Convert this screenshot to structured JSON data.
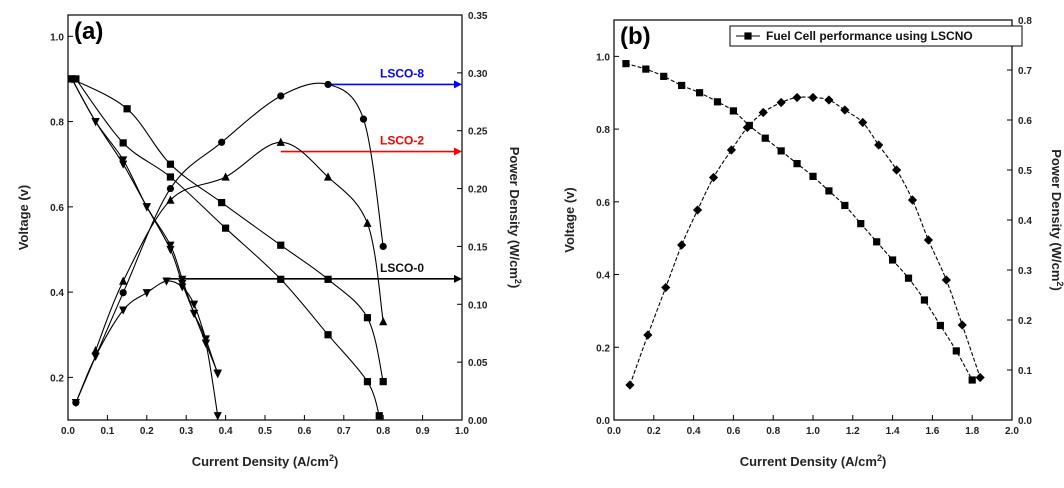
{
  "chart_data": [
    {
      "type": "line",
      "panel_label": "(a)",
      "xlabel": "Current Density (A/cm",
      "xlabel_sup": "2",
      "xlabel_suffix": ")",
      "ylabel": "Voltage (v)",
      "y2label": "Power Density (W/cm",
      "y2label_sup": "2",
      "y2label_suffix": ")",
      "xlim": [
        0,
        1.0
      ],
      "ylim": [
        0.1,
        1.05
      ],
      "y2lim": [
        0,
        0.35
      ],
      "xticks": [
        0.0,
        0.1,
        0.2,
        0.3,
        0.4,
        0.5,
        0.6,
        0.7,
        0.8,
        0.9,
        1.0
      ],
      "xtick_labels": [
        "0.0",
        "0.1",
        "0.2",
        "0.3",
        "0.4",
        "0.5",
        "0.6",
        "0.7",
        "0.8",
        "0.9",
        "1.0"
      ],
      "yticks": [
        0.2,
        0.4,
        0.6,
        0.8,
        1.0
      ],
      "ytick_labels": [
        "0.2",
        "0.4",
        "0.6",
        "0.8",
        "1.0"
      ],
      "y2ticks": [
        0.0,
        0.05,
        0.1,
        0.15,
        0.2,
        0.25,
        0.3,
        0.35
      ],
      "y2tick_labels": [
        "0.00",
        "0.05",
        "0.10",
        "0.15",
        "0.20",
        "0.25",
        "0.30",
        "0.35"
      ],
      "series": [
        {
          "marker": "triangle-down",
          "axis": "left",
          "x": [
            0.01,
            0.07,
            0.14,
            0.2,
            0.26,
            0.29,
            0.32,
            0.35,
            0.38
          ],
          "y": [
            0.9,
            0.8,
            0.71,
            0.6,
            0.51,
            0.43,
            0.35,
            0.28,
            0.21
          ]
        },
        {
          "marker": "triangle-down",
          "axis": "right",
          "x": [
            0.02,
            0.07,
            0.14,
            0.2,
            0.25,
            0.29,
            0.32,
            0.35,
            0.38
          ],
          "y": [
            0.015,
            0.055,
            0.095,
            0.11,
            0.12,
            0.115,
            0.1,
            0.07,
            0.04
          ]
        },
        {
          "marker": "square",
          "axis": "left",
          "x": [
            0.02,
            0.14,
            0.26,
            0.4,
            0.54,
            0.66,
            0.76,
            0.79
          ],
          "y": [
            0.9,
            0.75,
            0.67,
            0.55,
            0.43,
            0.3,
            0.19,
            0.11
          ]
        },
        {
          "marker": "square",
          "axis": "left",
          "x": [
            0.01,
            0.15,
            0.26,
            0.39,
            0.54,
            0.66,
            0.76,
            0.8
          ],
          "y": [
            0.9,
            0.83,
            0.7,
            0.61,
            0.51,
            0.43,
            0.34,
            0.19
          ]
        },
        {
          "marker": "triangle-up",
          "axis": "right",
          "x": [
            0.07,
            0.14,
            0.26,
            0.4,
            0.54,
            0.66,
            0.76,
            0.8
          ],
          "y": [
            0.06,
            0.12,
            0.19,
            0.21,
            0.24,
            0.21,
            0.17,
            0.085
          ]
        },
        {
          "marker": "circle",
          "axis": "right",
          "x": [
            0.02,
            0.14,
            0.26,
            0.39,
            0.54,
            0.66,
            0.75,
            0.8
          ],
          "y": [
            0.015,
            0.11,
            0.2,
            0.24,
            0.28,
            0.29,
            0.26,
            0.15
          ]
        },
        {
          "marker": "triangle-down",
          "axis": "left",
          "x": [
            0.01,
            0.07,
            0.14,
            0.2,
            0.26,
            0.29,
            0.32,
            0.35,
            0.38
          ],
          "y": [
            0.9,
            0.8,
            0.7,
            0.6,
            0.5,
            0.42,
            0.35,
            0.28,
            0.11
          ]
        }
      ],
      "annotations": [
        {
          "text": "LSCO-8",
          "color": "#0000ff",
          "arrow_from": [
            0.66,
            0.29
          ],
          "arrow_to": [
            1.0,
            0.29
          ],
          "axis": "right"
        },
        {
          "text": "LSCO-2",
          "color": "#ff0000",
          "arrow_from": [
            0.54,
            0.232
          ],
          "arrow_to": [
            1.0,
            0.232
          ],
          "axis": "right"
        },
        {
          "text": "LSCO-0",
          "color": "#000000",
          "arrow_from": [
            0.25,
            0.122
          ],
          "arrow_to": [
            1.0,
            0.122
          ],
          "axis": "right"
        }
      ]
    },
    {
      "type": "line",
      "panel_label": "(b)",
      "xlabel": "Current Density (A/cm",
      "xlabel_sup": "2",
      "xlabel_suffix": ")",
      "ylabel": "Voltage (v)",
      "y2label": "Power Density (W/cm",
      "y2label_sup": "2",
      "y2label_suffix": ")",
      "xlim": [
        0,
        2.0
      ],
      "ylim": [
        0,
        1.1
      ],
      "y2lim": [
        0,
        0.8
      ],
      "xticks": [
        0.0,
        0.2,
        0.4,
        0.6,
        0.8,
        1.0,
        1.2,
        1.4,
        1.6,
        1.8,
        2.0
      ],
      "xtick_labels": [
        "0.0",
        "0.2",
        "0.4",
        "0.6",
        "0.8",
        "1.0",
        "1.2",
        "1.4",
        "1.6",
        "1.8",
        "2.0"
      ],
      "yticks": [
        0.0,
        0.2,
        0.4,
        0.6,
        0.8,
        1.0
      ],
      "ytick_labels": [
        "0.0",
        "0.2",
        "0.4",
        "0.6",
        "0.8",
        "1.0"
      ],
      "y2ticks": [
        0.0,
        0.1,
        0.2,
        0.3,
        0.4,
        0.5,
        0.6,
        0.7,
        0.8
      ],
      "y2tick_labels": [
        "0.0",
        "0.1",
        "0.2",
        "0.3",
        "0.4",
        "0.5",
        "0.6",
        "0.7",
        "0.8"
      ],
      "legend": {
        "entry": "Fuel Cell performance using LSCNO",
        "placement": "top-right"
      },
      "series": [
        {
          "name": "Fuel Cell performance using LSCNO",
          "marker": "square",
          "axis": "left",
          "x": [
            0.06,
            0.16,
            0.25,
            0.34,
            0.43,
            0.52,
            0.6,
            0.68,
            0.76,
            0.84,
            0.92,
            1.0,
            1.08,
            1.16,
            1.24,
            1.32,
            1.4,
            1.48,
            1.56,
            1.64,
            1.72,
            1.8
          ],
          "y": [
            0.98,
            0.965,
            0.945,
            0.92,
            0.9,
            0.875,
            0.85,
            0.81,
            0.775,
            0.74,
            0.705,
            0.67,
            0.63,
            0.59,
            0.54,
            0.49,
            0.44,
            0.39,
            0.33,
            0.26,
            0.19,
            0.11
          ]
        },
        {
          "marker": "diamond",
          "axis": "right",
          "x": [
            0.08,
            0.17,
            0.26,
            0.34,
            0.42,
            0.5,
            0.59,
            0.67,
            0.75,
            0.84,
            0.92,
            1.0,
            1.08,
            1.16,
            1.25,
            1.33,
            1.42,
            1.5,
            1.58,
            1.67,
            1.75,
            1.84
          ],
          "y": [
            0.07,
            0.17,
            0.265,
            0.35,
            0.42,
            0.485,
            0.54,
            0.585,
            0.615,
            0.635,
            0.645,
            0.645,
            0.64,
            0.62,
            0.595,
            0.55,
            0.5,
            0.44,
            0.36,
            0.28,
            0.19,
            0.085
          ]
        }
      ]
    }
  ]
}
